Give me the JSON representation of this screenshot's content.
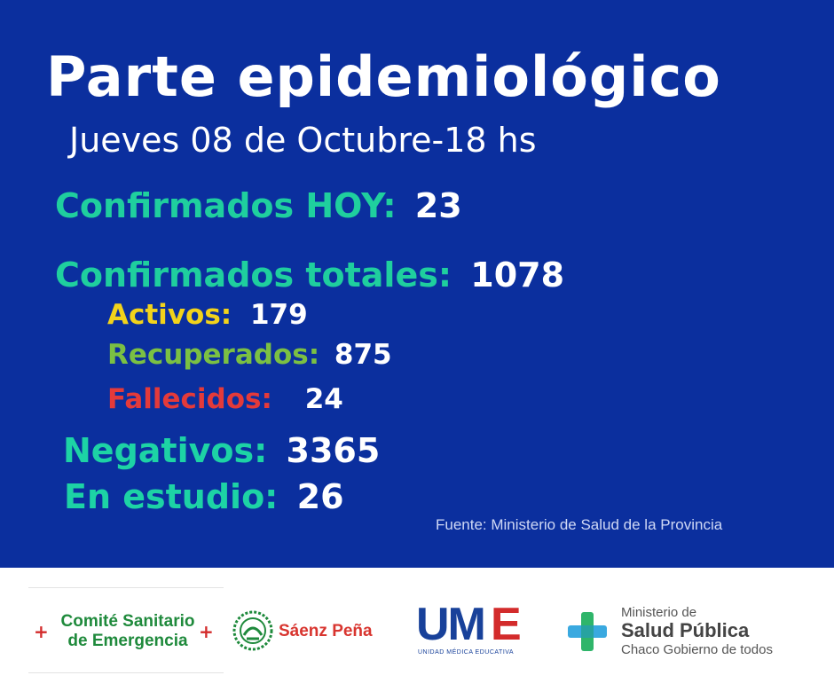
{
  "header": {
    "title": "Parte epidemiológico",
    "subtitle": "Jueves 08 de Octubre-18 hs"
  },
  "stats": {
    "confirmados_hoy": {
      "label": "Confirmados HOY:",
      "value": "23"
    },
    "confirmados_totales": {
      "label": "Confirmados totales:",
      "value": "1078"
    },
    "activos": {
      "label": "Activos:",
      "value": "179"
    },
    "recuperados": {
      "label": "Recuperados:",
      "value": "875"
    },
    "fallecidos": {
      "label": "Fallecidos:",
      "value": "24"
    },
    "negativos": {
      "label": "Negativos:",
      "value": "3365"
    },
    "en_estudio": {
      "label": "En estudio:",
      "value": "26"
    }
  },
  "source": "Fuente: Ministerio de Salud de la Provincia",
  "footer": {
    "comite": {
      "line1": "Comité Sanitario",
      "line2": "de Emergencia",
      "cross": "+"
    },
    "saenz_pena": {
      "name": "Sáenz Peña"
    },
    "ume": {
      "logo": "UM",
      "logo_cross": "E",
      "subtitle": "UNIDAD MÉDICA EDUCATIVA"
    },
    "ministerio": {
      "line1": "Ministerio de",
      "line2": "Salud Pública",
      "line3": "Chaco Gobierno de todos"
    }
  },
  "colors": {
    "background_blue": "#0b2f9e",
    "teal": "#1fcf9e",
    "yellow": "#f2d31b",
    "green": "#7bc043",
    "red": "#e43a3a",
    "white": "#ffffff"
  }
}
